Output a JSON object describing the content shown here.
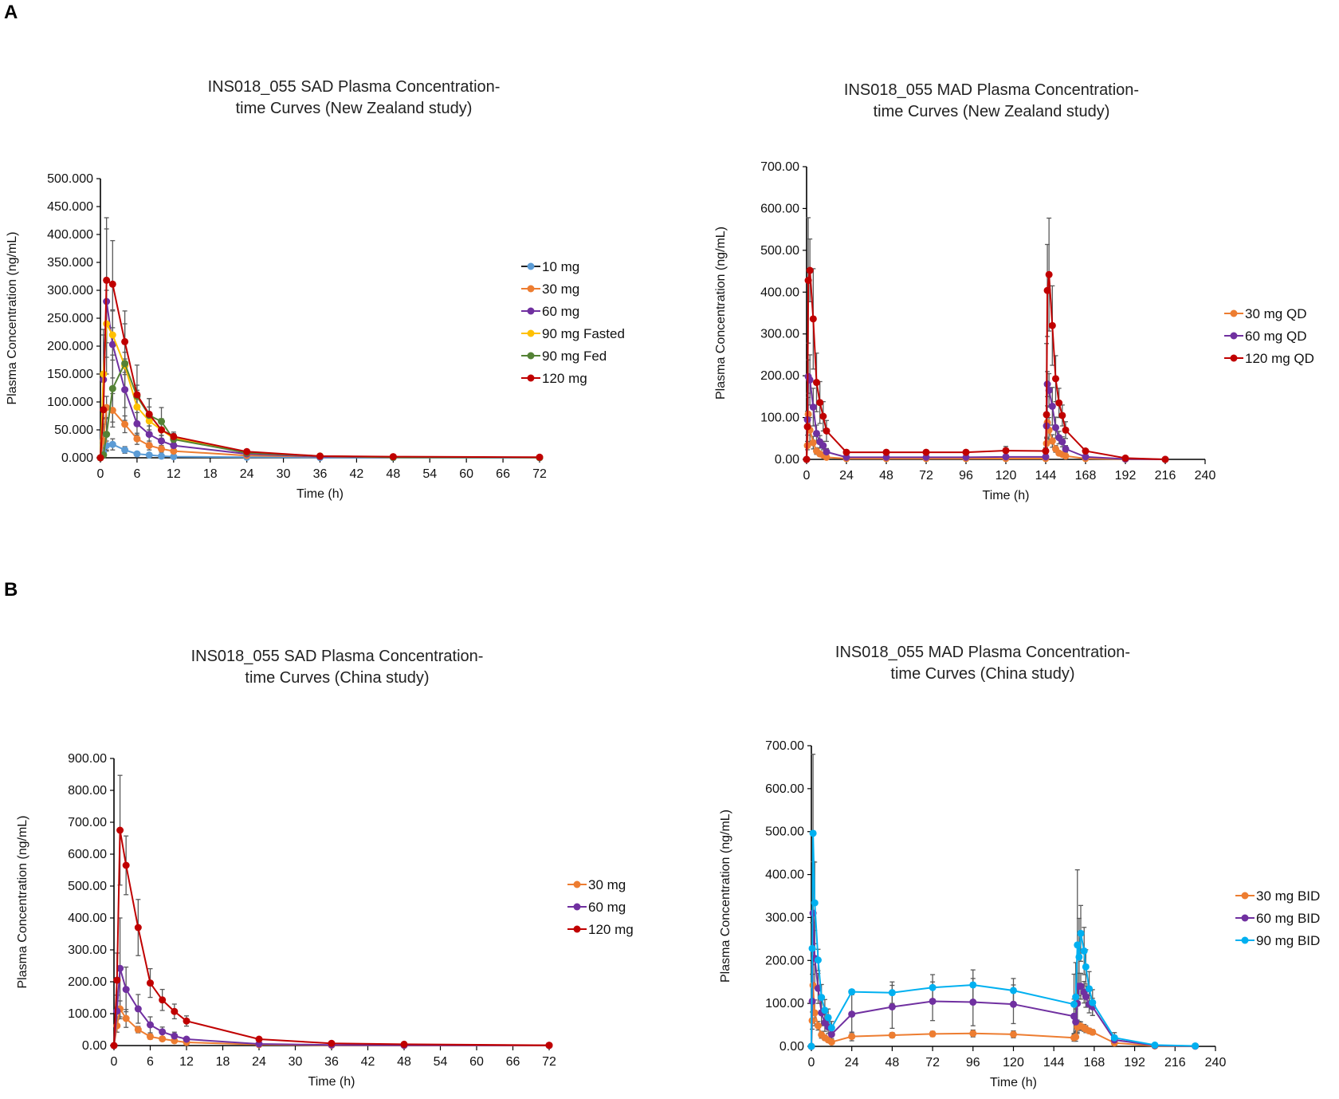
{
  "panels": [
    {
      "label": "A"
    },
    {
      "label": "B"
    }
  ],
  "chart_data": [
    {
      "type": "line",
      "title_line1": "INS018_055 SAD Plasma Concentration-",
      "title_line2": "time Curves (New Zealand study)",
      "xlabel": "Time (h)",
      "ylabel": "Plasma Concentration (ng/mL)",
      "xlim": [
        0,
        72
      ],
      "ylim": [
        0,
        500
      ],
      "xticks": [
        0,
        6,
        12,
        18,
        24,
        30,
        36,
        42,
        48,
        54,
        60,
        66,
        72
      ],
      "yticks": [
        "0.000",
        "50.000",
        "100.000",
        "150.000",
        "200.000",
        "250.000",
        "300.000",
        "350.000",
        "400.000",
        "450.000",
        "500.000"
      ],
      "grid": false,
      "legend": "right",
      "x": [
        0,
        0.5,
        1,
        2,
        4,
        6,
        8,
        10,
        12,
        24,
        36,
        48,
        72
      ],
      "series": [
        {
          "name": "10 mg",
          "color": "#5b9bd5",
          "values": [
            0,
            10,
            22,
            24,
            14,
            7,
            5,
            3,
            2,
            1,
            0.5,
            0.2,
            0
          ],
          "sd": [
            0,
            5,
            8,
            10,
            6,
            3,
            2,
            1,
            1,
            0,
            0,
            0,
            0
          ]
        },
        {
          "name": "30 mg",
          "color": "#ed7d31",
          "values": [
            0,
            30,
            90,
            85,
            60,
            34,
            22,
            16,
            12,
            4,
            2,
            1,
            0.5
          ],
          "sd": [
            0,
            15,
            20,
            30,
            15,
            10,
            8,
            6,
            4,
            2,
            0,
            0,
            0
          ]
        },
        {
          "name": "60 mg",
          "color": "#7030a0",
          "values": [
            0,
            140,
            280,
            203,
            122,
            61,
            42,
            30,
            22,
            7,
            2,
            1,
            0.5
          ],
          "sd": [
            0,
            80,
            130,
            60,
            55,
            20,
            15,
            10,
            5,
            2,
            1,
            0,
            0
          ]
        },
        {
          "name": "90 mg Fasted",
          "color": "#ffc000",
          "values": [
            0,
            150,
            240,
            220,
            165,
            91,
            66,
            50,
            35,
            9,
            3,
            1,
            0.5
          ],
          "sd": [
            0,
            80,
            60,
            45,
            75,
            30,
            25,
            15,
            8,
            3,
            1,
            0,
            0
          ]
        },
        {
          "name": "90 mg Fed",
          "color": "#548235",
          "values": [
            0,
            5,
            42,
            124,
            169,
            110,
            76,
            65,
            33,
            9,
            3,
            1,
            0.5
          ],
          "sd": [
            0,
            5,
            30,
            60,
            20,
            20,
            30,
            25,
            10,
            4,
            1,
            0,
            0
          ]
        },
        {
          "name": "120 mg",
          "color": "#c00000",
          "values": [
            0,
            86,
            318,
            311,
            208,
            113,
            78,
            50,
            38,
            11,
            3,
            2,
            1
          ],
          "sd": [
            0,
            60,
            112,
            78,
            55,
            53,
            28,
            20,
            8,
            4,
            1,
            1,
            0
          ]
        }
      ]
    },
    {
      "type": "line",
      "title_line1": "INS018_055 MAD Plasma Concentration-",
      "title_line2": "time Curves (New Zealand study)",
      "xlabel": "Time (h)",
      "ylabel": "Plasma Concentration (ng/mL)",
      "xlim": [
        0,
        240
      ],
      "ylim": [
        0,
        700
      ],
      "xticks": [
        0,
        24,
        48,
        72,
        96,
        120,
        144,
        168,
        192,
        216,
        240
      ],
      "yticks": [
        "0.00",
        "100.00",
        "200.00",
        "300.00",
        "400.00",
        "500.00",
        "600.00",
        "700.00"
      ],
      "grid": false,
      "legend": "right",
      "x": [
        0,
        0.5,
        1,
        2,
        4,
        6,
        8,
        10,
        12,
        24,
        48,
        72,
        96,
        120,
        144,
        144.5,
        145,
        146,
        148,
        150,
        152,
        154,
        156,
        168,
        192,
        216
      ],
      "series": [
        {
          "name": "30 mg QD",
          "color": "#ed7d31",
          "values": [
            0,
            33,
            108,
            70,
            40,
            20,
            13,
            10,
            5,
            2,
            2,
            2,
            2,
            2,
            2,
            38,
            88,
            70,
            44,
            25,
            15,
            12,
            8,
            2,
            0.5,
            0
          ],
          "sd": [
            0,
            10,
            40,
            30,
            15,
            8,
            5,
            4,
            2,
            1,
            1,
            1,
            1,
            1,
            1,
            15,
            40,
            30,
            15,
            8,
            5,
            4,
            2,
            1,
            0,
            0
          ]
        },
        {
          "name": "60 mg QD",
          "color": "#7030a0",
          "values": [
            0,
            95,
            198,
            190,
            125,
            62,
            42,
            33,
            18,
            5,
            5,
            5,
            5,
            6,
            6,
            80,
            180,
            165,
            127,
            76,
            52,
            42,
            25,
            6,
            1,
            0
          ],
          "sd": [
            0,
            20,
            40,
            60,
            45,
            20,
            15,
            10,
            8,
            2,
            2,
            2,
            2,
            2,
            2,
            30,
            30,
            40,
            45,
            25,
            15,
            12,
            8,
            2,
            0,
            0
          ]
        },
        {
          "name": "120 mg QD",
          "color": "#c00000",
          "values": [
            0,
            78,
            428,
            452,
            336,
            184,
            136,
            103,
            68,
            17,
            17,
            17,
            17,
            21,
            20,
            107,
            404,
            442,
            320,
            193,
            135,
            105,
            70,
            20,
            3,
            0
          ],
          "sd": [
            0,
            20,
            150,
            75,
            120,
            70,
            50,
            35,
            25,
            5,
            5,
            5,
            5,
            10,
            8,
            170,
            110,
            135,
            95,
            55,
            35,
            25,
            20,
            5,
            1,
            0
          ]
        }
      ]
    },
    {
      "type": "line",
      "title_line1": "INS018_055 SAD Plasma Concentration-",
      "title_line2": "time Curves (China study)",
      "xlabel": "Time (h)",
      "ylabel": "Plasma Concentration (ng/mL)",
      "xlim": [
        0,
        72
      ],
      "ylim": [
        0,
        900
      ],
      "xticks": [
        0,
        6,
        12,
        18,
        24,
        30,
        36,
        42,
        48,
        54,
        60,
        66,
        72
      ],
      "yticks": [
        "0.00",
        "100.00",
        "200.00",
        "300.00",
        "400.00",
        "500.00",
        "600.00",
        "700.00",
        "800.00",
        "900.00"
      ],
      "grid": false,
      "legend": "right",
      "x": [
        0,
        0.5,
        1,
        2,
        4,
        6,
        8,
        10,
        12,
        24,
        36,
        48,
        72
      ],
      "series": [
        {
          "name": "30 mg",
          "color": "#ed7d31",
          "values": [
            0,
            62,
            115,
            85,
            50,
            28,
            21,
            15,
            10,
            3,
            1,
            0.5,
            0
          ],
          "sd": [
            0,
            20,
            25,
            28,
            10,
            8,
            5,
            4,
            3,
            1,
            0,
            0,
            0
          ]
        },
        {
          "name": "60 mg",
          "color": "#7030a0",
          "values": [
            0,
            108,
            242,
            176,
            115,
            65,
            43,
            30,
            20,
            5,
            2,
            1,
            0.5
          ],
          "sd": [
            0,
            50,
            158,
            70,
            45,
            25,
            15,
            12,
            6,
            2,
            1,
            0,
            0
          ]
        },
        {
          "name": "120 mg",
          "color": "#c00000",
          "values": [
            0,
            205,
            675,
            565,
            370,
            196,
            143,
            107,
            77,
            20,
            7,
            4,
            1
          ],
          "sd": [
            0,
            85,
            172,
            92,
            88,
            45,
            33,
            23,
            16,
            5,
            2,
            1,
            0
          ]
        }
      ]
    },
    {
      "type": "line",
      "title_line1": "INS018_055 MAD Plasma Concentration-",
      "title_line2": "time Curves (China study)",
      "xlabel": "Time (h)",
      "ylabel": "Plasma Concentration (ng/mL)",
      "xlim": [
        0,
        240
      ],
      "ylim": [
        0,
        700
      ],
      "xticks": [
        0,
        24,
        48,
        72,
        96,
        120,
        144,
        168,
        192,
        216,
        240
      ],
      "yticks": [
        "0.00",
        "100.00",
        "200.00",
        "300.00",
        "400.00",
        "500.00",
        "600.00",
        "700.00"
      ],
      "grid": false,
      "legend": "right",
      "x": [
        0,
        0.5,
        1,
        2,
        4,
        6,
        8,
        10,
        12,
        24,
        48,
        72,
        96,
        120,
        156,
        157,
        158,
        159,
        160,
        162,
        163,
        165,
        167,
        180,
        204,
        228
      ],
      "series": [
        {
          "name": "30 mg BID",
          "color": "#ed7d31",
          "values": [
            0,
            60,
            142,
            78,
            48,
            27,
            20,
            15,
            10,
            23,
            26,
            29,
            30,
            28,
            20,
            22,
            45,
            48,
            47,
            43,
            40,
            36,
            33,
            8,
            1,
            0.5
          ],
          "sd": [
            0,
            20,
            60,
            30,
            10,
            8,
            6,
            5,
            4,
            10,
            6,
            6,
            8,
            8,
            8,
            10,
            12,
            10,
            10,
            8,
            8,
            6,
            6,
            2,
            0,
            0
          ]
        },
        {
          "name": "60 mg BID",
          "color": "#7030a0",
          "values": [
            0,
            105,
            310,
            205,
            135,
            78,
            55,
            45,
            28,
            75,
            92,
            105,
            103,
            98,
            70,
            57,
            100,
            140,
            140,
            126,
            116,
            98,
            92,
            15,
            2,
            0.5
          ],
          "sd": [
            0,
            40,
            120,
            65,
            35,
            30,
            20,
            15,
            10,
            45,
            50,
            45,
            55,
            45,
            40,
            30,
            70,
            30,
            30,
            25,
            25,
            20,
            20,
            10,
            1,
            0
          ]
        },
        {
          "name": "90 mg BID",
          "color": "#00b0f0",
          "values": [
            0,
            228,
            496,
            334,
            201,
            114,
            84,
            67,
            43,
            127,
            125,
            137,
            143,
            130,
            98,
            115,
            236,
            208,
            263,
            222,
            185,
            134,
            102,
            20,
            3,
            1
          ],
          "sd": [
            0,
            60,
            184,
            95,
            25,
            30,
            25,
            20,
            15,
            5,
            25,
            30,
            35,
            28,
            70,
            80,
            175,
            90,
            65,
            55,
            40,
            40,
            30,
            12,
            2,
            0
          ]
        }
      ]
    }
  ]
}
